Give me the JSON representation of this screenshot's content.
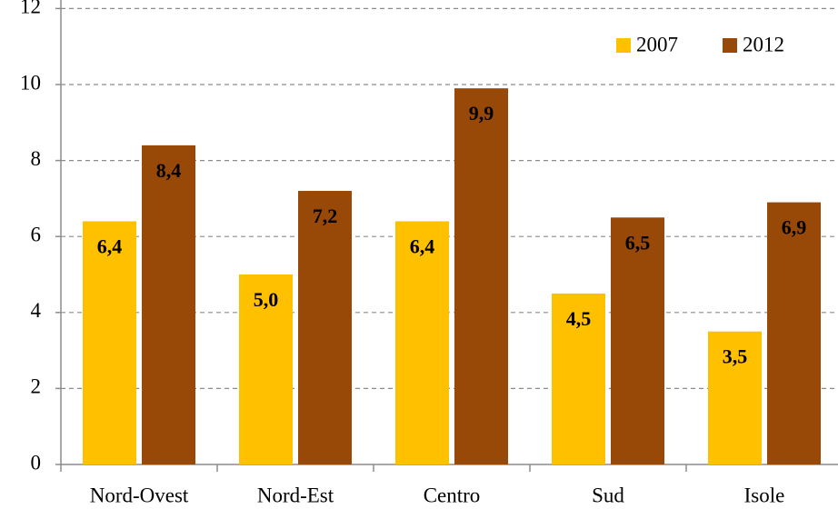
{
  "chart_data": {
    "type": "bar",
    "categories": [
      "Nord-Ovest",
      "Nord-Est",
      "Centro",
      "Sud",
      "Isole"
    ],
    "series": [
      {
        "name": "2007",
        "color": "#ffc000",
        "values": [
          6.4,
          5.0,
          6.4,
          4.5,
          3.5
        ],
        "value_labels": [
          "6,4",
          "5,0",
          "6,4",
          "4,5",
          "3,5"
        ]
      },
      {
        "name": "2012",
        "color": "#984807",
        "values": [
          8.4,
          7.2,
          9.9,
          6.5,
          6.9
        ],
        "value_labels": [
          "8,4",
          "7,2",
          "9,9",
          "6,5",
          "6,9"
        ]
      }
    ],
    "ylim": [
      0,
      12
    ],
    "yticks": [
      0,
      2,
      4,
      6,
      8,
      10,
      12
    ],
    "grid": true,
    "legend": "top-right"
  }
}
